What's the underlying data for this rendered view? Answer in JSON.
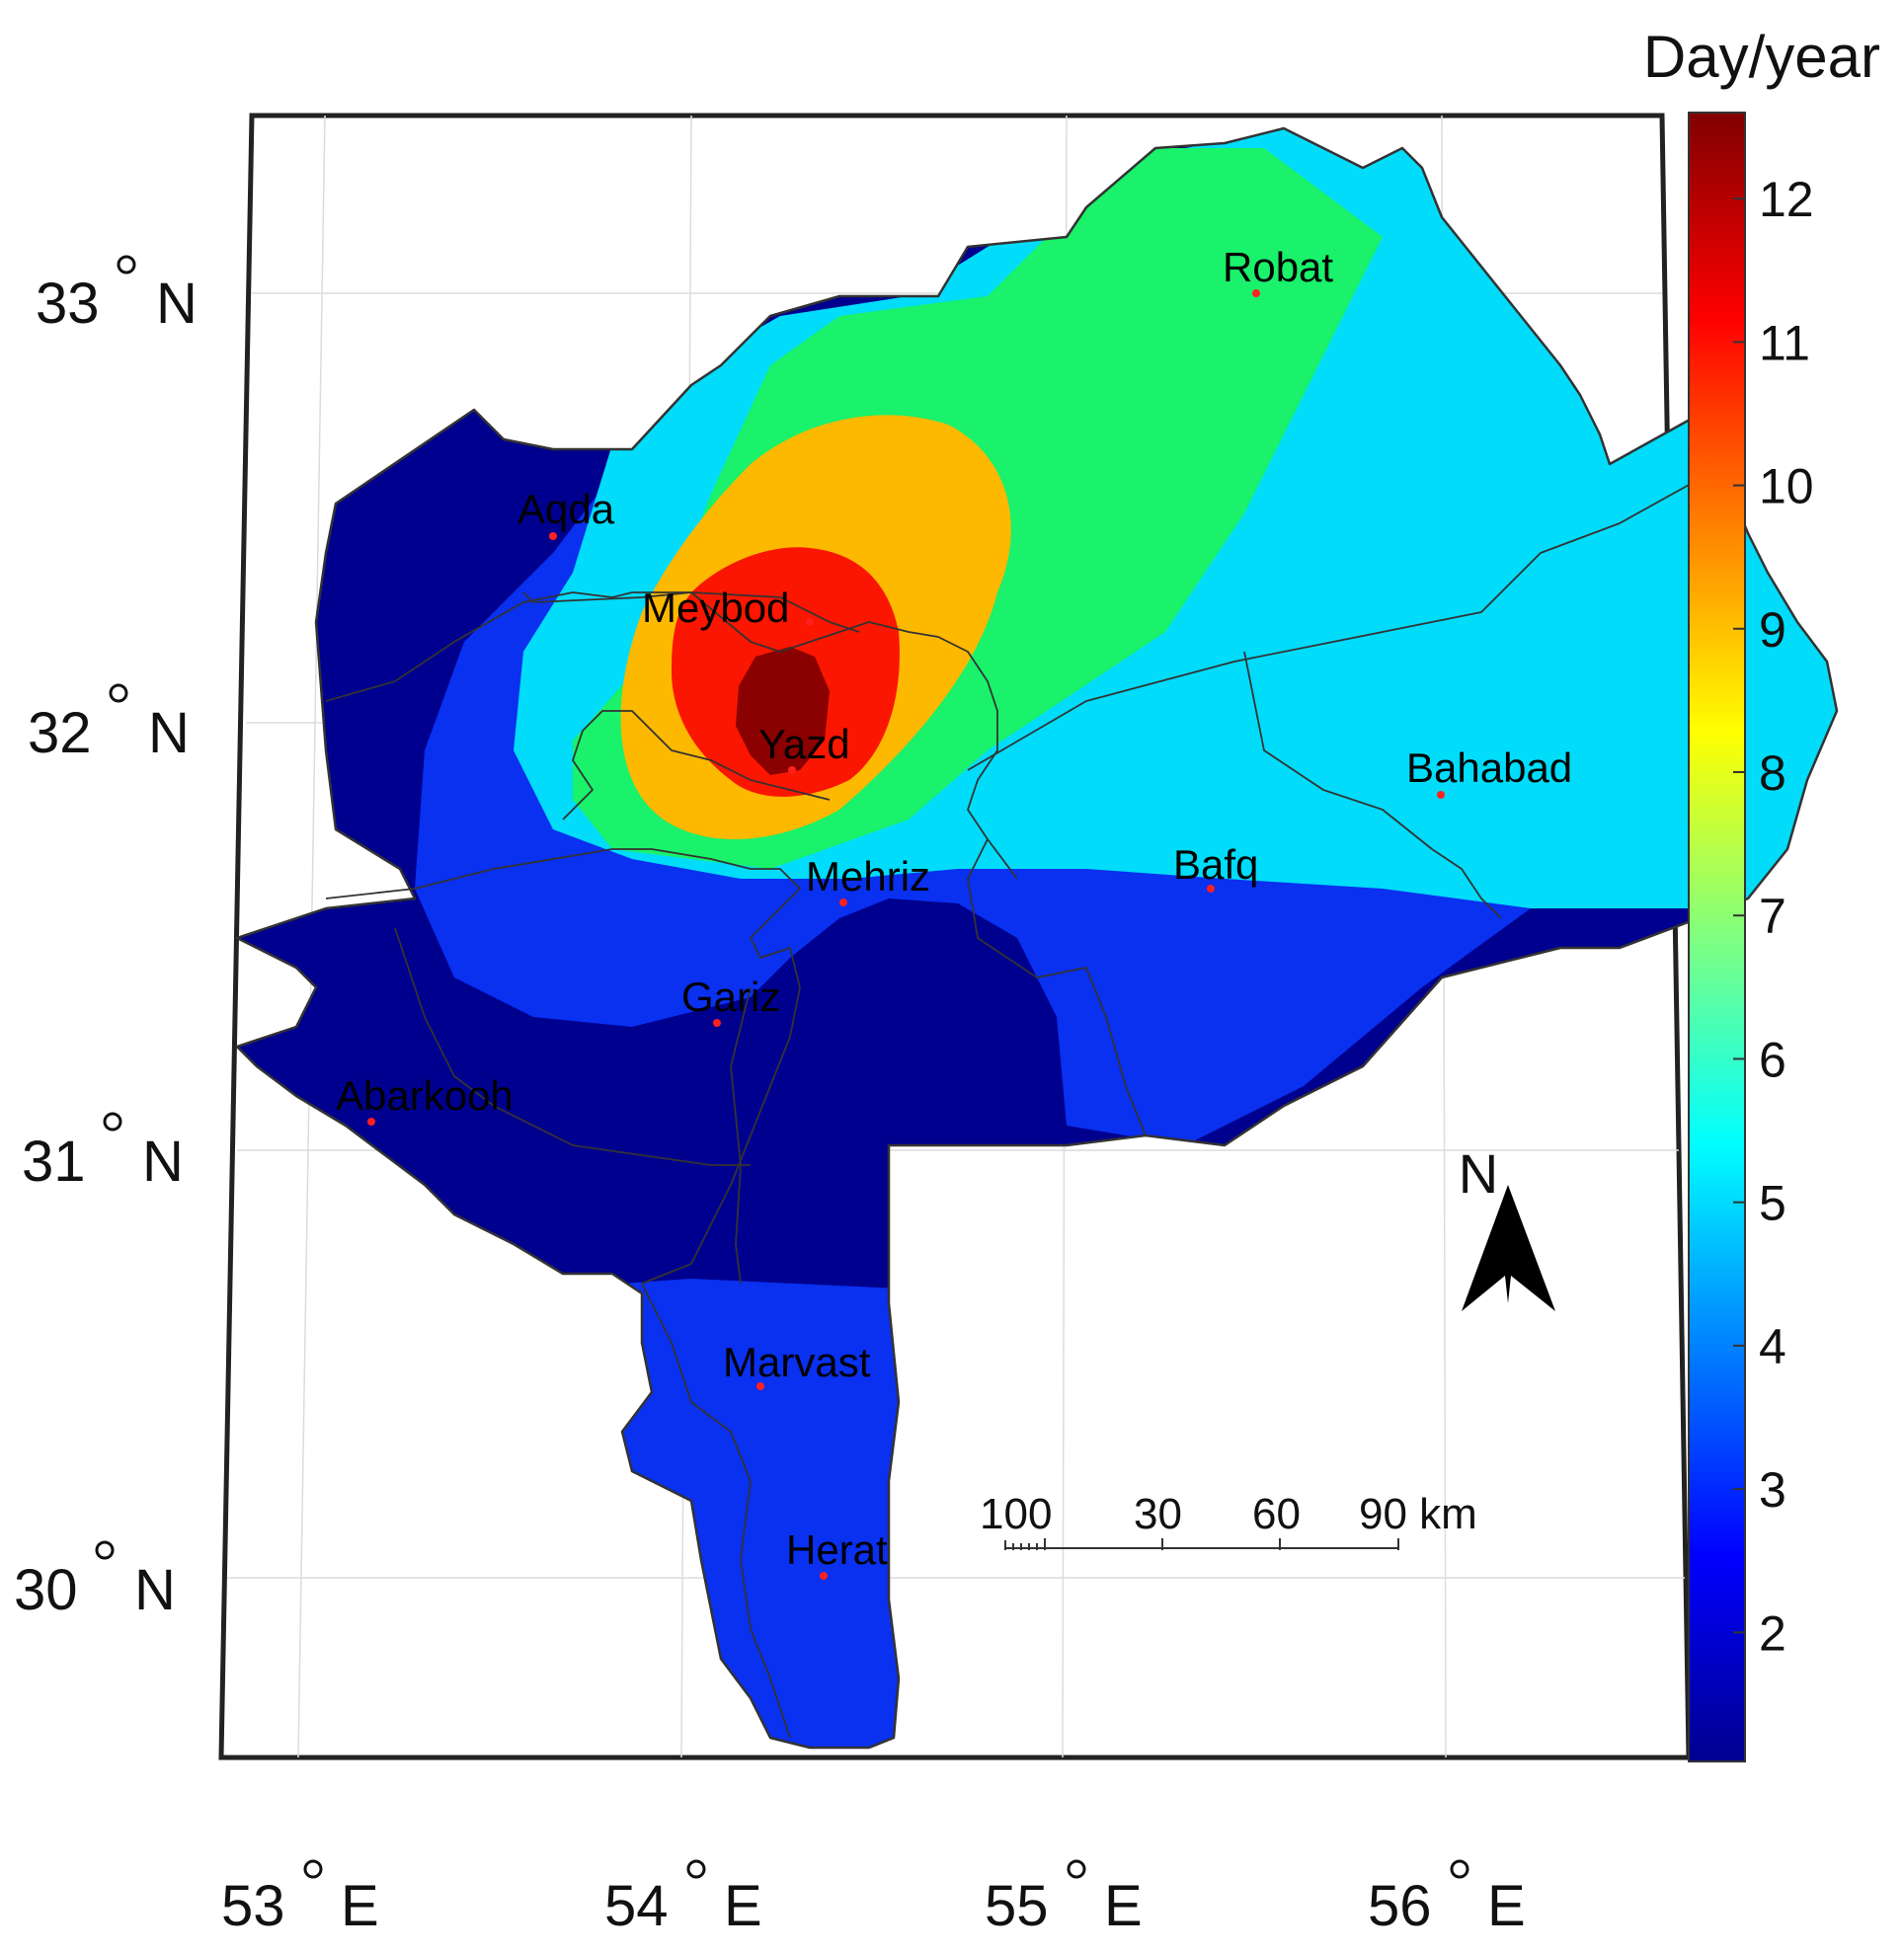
{
  "map": {
    "colorbar": {
      "title": "Day/year",
      "min": 1.1,
      "max": 12.6,
      "ticks": [
        "2",
        "3",
        "4",
        "5",
        "6",
        "7",
        "8",
        "9",
        "10",
        "11",
        "12"
      ]
    },
    "latitude_labels": [
      {
        "deg": "33",
        "hemi": "N"
      },
      {
        "deg": "32",
        "hemi": "N"
      },
      {
        "deg": "31",
        "hemi": "N"
      },
      {
        "deg": "30",
        "hemi": "N"
      }
    ],
    "longitude_labels": [
      {
        "deg": "53",
        "hemi": "E"
      },
      {
        "deg": "54",
        "hemi": "E"
      },
      {
        "deg": "55",
        "hemi": "E"
      },
      {
        "deg": "56",
        "hemi": "E"
      }
    ],
    "cities": [
      {
        "name": "Robat"
      },
      {
        "name": "Aqda"
      },
      {
        "name": "Meybod"
      },
      {
        "name": "Yazd"
      },
      {
        "name": "Bahabad"
      },
      {
        "name": "Bafq"
      },
      {
        "name": "Mehriz"
      },
      {
        "name": "Gariz"
      },
      {
        "name": "Abarkooh"
      },
      {
        "name": "Marvast"
      },
      {
        "name": "Herat"
      }
    ],
    "scale_bar": {
      "labels": [
        "100",
        "30",
        "60",
        "90 km"
      ]
    },
    "north_arrow": {
      "label": "N"
    },
    "colors": {
      "level_1": "#00008f",
      "level_2": "#0a30f0",
      "level_3": "#1f6ee8",
      "level_4": "#00dcfa",
      "level_5": "#19f26a",
      "level_6": "#fdb800",
      "level_7": "#fa1600",
      "level_8": "#8b0000",
      "city_dot": "#ff2020"
    }
  }
}
